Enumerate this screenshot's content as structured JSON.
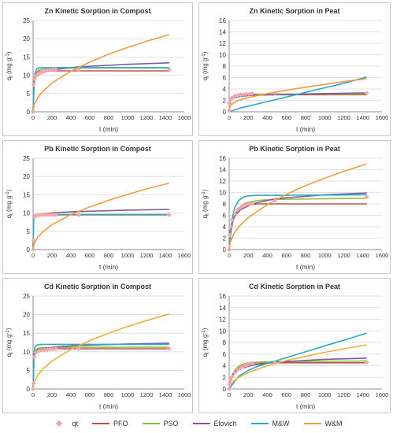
{
  "styles": {
    "qt": "#f4a6ad",
    "PFO": "#c0504d",
    "PSO": "#8fbe3f",
    "Elovich": "#7f5aa0",
    "MW": "#2fa9c3",
    "WM": "#f39c3b",
    "WM_cd": "#e5b33a",
    "grid": "#d9d9d9",
    "axis": "#8c8c8c",
    "text": "#333333"
  },
  "legend": [
    {
      "key": "qt",
      "label": "qt",
      "kind": "marker"
    },
    {
      "key": "PFO",
      "label": "PFO",
      "kind": "line"
    },
    {
      "key": "PSO",
      "label": "PSO",
      "kind": "line"
    },
    {
      "key": "Elovich",
      "label": "Elovich",
      "kind": "line"
    },
    {
      "key": "MW",
      "label": "M&W",
      "kind": "line"
    },
    {
      "key": "WM",
      "label": "W&M",
      "kind": "line"
    }
  ],
  "chart_data": [
    {
      "type": "line",
      "title": "Zn Kinetic Sorption in Compost",
      "xlabel": "t (min)",
      "ylabel": "q",
      "xlim": [
        0,
        1600
      ],
      "ylim": [
        0,
        25
      ],
      "xticks": [
        0,
        200,
        400,
        600,
        800,
        1000,
        1200,
        1400,
        1600
      ],
      "yticks": [
        0,
        5,
        10,
        15,
        20,
        25
      ],
      "qt": {
        "x": [
          0,
          5,
          15,
          30,
          60,
          90,
          120,
          150,
          180,
          210,
          240,
          480,
          1440
        ],
        "y": [
          0,
          7.5,
          9.0,
          9.8,
          10.5,
          10.9,
          11.2,
          11.4,
          11.5,
          11.6,
          11.6,
          11.6,
          11.5
        ]
      },
      "series": [
        {
          "name": "PFO",
          "x": [
            0,
            10,
            20,
            40,
            60,
            100,
            150,
            200,
            300,
            480,
            1440
          ],
          "y": [
            0,
            7.0,
            9.5,
            10.8,
            11.1,
            11.2,
            11.2,
            11.2,
            11.2,
            11.2,
            11.2
          ]
        },
        {
          "name": "PSO",
          "x": [
            0,
            10,
            20,
            40,
            60,
            100,
            150,
            200,
            300,
            480,
            1440
          ],
          "y": [
            0,
            8.0,
            10.0,
            11.0,
            11.4,
            11.7,
            11.8,
            11.9,
            11.9,
            12.0,
            12.0
          ]
        },
        {
          "name": "Elovich",
          "x": [
            1,
            10,
            30,
            60,
            120,
            240,
            480,
            1000,
            1440
          ],
          "y": [
            7.0,
            8.5,
            9.5,
            10.2,
            10.9,
            11.6,
            12.3,
            13.0,
            13.4
          ]
        },
        {
          "name": "M&W",
          "x": [
            0,
            10,
            20,
            40,
            60,
            100,
            150,
            200,
            480,
            1440
          ],
          "y": [
            0,
            8.0,
            10.5,
            11.8,
            12.0,
            12.1,
            12.1,
            12.1,
            12.1,
            12.1
          ]
        },
        {
          "name": "W&M",
          "x": [
            0,
            10,
            50,
            100,
            200,
            400,
            600,
            800,
            1000,
            1200,
            1440
          ],
          "y": [
            0,
            1.8,
            3.9,
            5.5,
            7.9,
            11.1,
            13.6,
            15.8,
            17.6,
            19.3,
            21.1
          ]
        }
      ]
    },
    {
      "type": "line",
      "title": "Zn Kinetic Sorption in Peat",
      "xlabel": "t (min)",
      "ylabel": "q",
      "xlim": [
        0,
        1600
      ],
      "ylim": [
        0,
        16
      ],
      "xticks": [
        0,
        200,
        400,
        600,
        800,
        1000,
        1200,
        1400,
        1600
      ],
      "yticks": [
        0,
        2,
        4,
        6,
        8,
        10,
        12,
        14,
        16
      ],
      "qt": {
        "x": [
          0,
          5,
          15,
          30,
          60,
          90,
          120,
          150,
          180,
          210,
          240,
          480,
          1440
        ],
        "y": [
          0.2,
          1.5,
          2.2,
          2.5,
          2.8,
          2.9,
          3.0,
          3.0,
          3.1,
          3.1,
          3.2,
          3.3,
          3.3
        ]
      },
      "series": [
        {
          "name": "PFO",
          "x": [
            0,
            10,
            20,
            40,
            60,
            100,
            200,
            480,
            1440
          ],
          "y": [
            0,
            1.8,
            2.3,
            2.6,
            2.8,
            2.9,
            3.0,
            3.0,
            3.0
          ]
        },
        {
          "name": "PSO",
          "x": [
            0,
            10,
            20,
            40,
            60,
            100,
            200,
            480,
            1440
          ],
          "y": [
            0,
            2.0,
            2.4,
            2.7,
            2.9,
            3.0,
            3.1,
            3.1,
            3.1
          ]
        },
        {
          "name": "Elovich",
          "x": [
            1,
            10,
            30,
            60,
            120,
            240,
            480,
            1000,
            1440
          ],
          "y": [
            1.2,
            2.0,
            2.3,
            2.5,
            2.7,
            2.9,
            3.0,
            3.2,
            3.3
          ]
        },
        {
          "name": "M&W",
          "x": [
            0,
            100,
            200,
            400,
            600,
            800,
            1000,
            1200,
            1440
          ],
          "y": [
            0,
            0.6,
            1.0,
            1.8,
            2.6,
            3.4,
            4.2,
            5.0,
            6.1
          ]
        },
        {
          "name": "W&M",
          "x": [
            0,
            10,
            50,
            100,
            200,
            400,
            600,
            800,
            1000,
            1200,
            1440
          ],
          "y": [
            0,
            1.0,
            1.6,
            2.0,
            2.5,
            3.2,
            3.8,
            4.3,
            4.8,
            5.3,
            5.8
          ]
        }
      ]
    },
    {
      "type": "line",
      "title": "Pb Kinetic Sorption in Compost",
      "xlabel": "t (min)",
      "ylabel": "q",
      "xlim": [
        0,
        1600
      ],
      "ylim": [
        0,
        25
      ],
      "xticks": [
        0,
        200,
        400,
        600,
        800,
        1000,
        1200,
        1400,
        1600
      ],
      "yticks": [
        0,
        5,
        10,
        15,
        20,
        25
      ],
      "qt": {
        "x": [
          0,
          5,
          15,
          30,
          60,
          90,
          120,
          150,
          180,
          210,
          240,
          480,
          1440
        ],
        "y": [
          0,
          2.5,
          8.8,
          9.3,
          9.4,
          9.5,
          9.5,
          9.5,
          9.5,
          9.5,
          9.5,
          9.5,
          9.5
        ]
      },
      "series": [
        {
          "name": "PFO",
          "x": [
            0,
            5,
            10,
            20,
            40,
            100,
            480,
            1440
          ],
          "y": [
            0,
            8.0,
            9.2,
            9.4,
            9.5,
            9.5,
            9.5,
            9.5
          ]
        },
        {
          "name": "PSO",
          "x": [
            0,
            5,
            10,
            20,
            40,
            100,
            480,
            1440
          ],
          "y": [
            0,
            8.5,
            9.3,
            9.5,
            9.6,
            9.6,
            9.6,
            9.6
          ]
        },
        {
          "name": "Elovich",
          "x": [
            1,
            10,
            30,
            60,
            120,
            240,
            480,
            1000,
            1440
          ],
          "y": [
            8.0,
            8.8,
            9.2,
            9.5,
            9.8,
            10.1,
            10.4,
            10.8,
            11.0
          ]
        },
        {
          "name": "M&W",
          "x": [
            0,
            5,
            10,
            20,
            40,
            100,
            480,
            1440
          ],
          "y": [
            0,
            8.4,
            9.3,
            9.5,
            9.6,
            9.6,
            9.6,
            9.6
          ]
        },
        {
          "name": "W&M",
          "x": [
            0,
            10,
            50,
            100,
            200,
            400,
            600,
            800,
            1000,
            1200,
            1440
          ],
          "y": [
            0,
            1.5,
            3.4,
            4.8,
            6.8,
            9.6,
            11.7,
            13.5,
            15.1,
            16.6,
            18.2
          ]
        }
      ]
    },
    {
      "type": "line",
      "title": "Pb Kinetic Sorption in Peat",
      "xlabel": "t (min)",
      "ylabel": "q",
      "xlim": [
        0,
        1600
      ],
      "ylim": [
        0,
        16
      ],
      "xticks": [
        0,
        200,
        400,
        600,
        800,
        1000,
        1200,
        1400,
        1600
      ],
      "yticks": [
        0,
        2,
        4,
        6,
        8,
        10,
        12,
        14,
        16
      ],
      "qt": {
        "x": [
          0,
          5,
          15,
          30,
          60,
          90,
          120,
          150,
          180,
          210,
          240,
          480,
          1440
        ],
        "y": [
          0,
          2.5,
          4.0,
          5.2,
          6.3,
          7.0,
          7.4,
          7.7,
          7.9,
          8.0,
          8.1,
          8.6,
          9.2
        ]
      },
      "series": [
        {
          "name": "PFO",
          "x": [
            0,
            20,
            40,
            60,
            100,
            150,
            200,
            300,
            480,
            1440
          ],
          "y": [
            0,
            3.2,
            5.0,
            6.0,
            7.1,
            7.7,
            7.9,
            8.0,
            8.0,
            8.0
          ]
        },
        {
          "name": "PSO",
          "x": [
            0,
            20,
            40,
            60,
            100,
            150,
            200,
            300,
            480,
            1440
          ],
          "y": [
            0,
            3.5,
            5.2,
            6.2,
            7.3,
            8.0,
            8.3,
            8.6,
            8.8,
            9.0
          ]
        },
        {
          "name": "Elovich",
          "x": [
            1,
            10,
            30,
            60,
            120,
            240,
            480,
            1000,
            1440
          ],
          "y": [
            1.0,
            3.2,
            4.8,
            5.9,
            7.0,
            8.0,
            8.9,
            9.6,
            9.9
          ]
        },
        {
          "name": "M&W",
          "x": [
            0,
            20,
            40,
            60,
            100,
            150,
            200,
            300,
            480,
            1440
          ],
          "y": [
            0,
            4.0,
            6.2,
            7.4,
            8.6,
            9.2,
            9.4,
            9.5,
            9.5,
            9.6
          ]
        },
        {
          "name": "W&M",
          "x": [
            0,
            10,
            50,
            100,
            200,
            400,
            600,
            800,
            1000,
            1200,
            1440
          ],
          "y": [
            0,
            1.2,
            2.8,
            4.0,
            5.6,
            7.9,
            9.7,
            11.2,
            12.5,
            13.7,
            15.0
          ]
        }
      ]
    },
    {
      "type": "line",
      "title": "Cd Kinetic Sorption in Compost",
      "xlabel": "t (min)",
      "ylabel": "q",
      "xlim": [
        0,
        1600
      ],
      "ylim": [
        0,
        25
      ],
      "xticks": [
        0,
        200,
        400,
        600,
        800,
        1000,
        1200,
        1400,
        1600
      ],
      "yticks": [
        0,
        5,
        10,
        15,
        20,
        25
      ],
      "qt": {
        "x": [
          0,
          5,
          15,
          30,
          60,
          90,
          120,
          150,
          180,
          210,
          240,
          480,
          1440
        ],
        "y": [
          0,
          1.5,
          8.5,
          9.8,
          10.2,
          10.4,
          10.5,
          10.6,
          10.7,
          10.7,
          10.8,
          10.8,
          10.8
        ]
      },
      "series": [
        {
          "name": "PFO",
          "x": [
            0,
            10,
            20,
            40,
            60,
            100,
            480,
            1440
          ],
          "y": [
            0,
            8.5,
            10.0,
            10.6,
            10.7,
            10.8,
            10.8,
            10.8
          ]
        },
        {
          "name": "PSO",
          "x": [
            0,
            10,
            20,
            40,
            60,
            100,
            480,
            1440
          ],
          "y": [
            0,
            9.0,
            10.2,
            10.8,
            11.0,
            11.1,
            11.2,
            11.2
          ]
        },
        {
          "name": "Elovich",
          "x": [
            1,
            10,
            30,
            60,
            120,
            240,
            480,
            1000,
            1440
          ],
          "y": [
            8.2,
            9.3,
            10.0,
            10.5,
            10.9,
            11.3,
            11.7,
            12.1,
            12.3
          ]
        },
        {
          "name": "M&W",
          "x": [
            0,
            10,
            20,
            40,
            60,
            100,
            480,
            1440
          ],
          "y": [
            0,
            9.5,
            11.3,
            11.8,
            11.9,
            12.0,
            12.0,
            12.0
          ]
        },
        {
          "name": "W&M",
          "x": [
            0,
            10,
            50,
            100,
            200,
            400,
            600,
            800,
            1000,
            1200,
            1440
          ],
          "y": [
            0,
            1.7,
            3.7,
            5.3,
            7.5,
            10.6,
            13.0,
            15.0,
            16.8,
            18.4,
            20.2
          ]
        }
      ]
    },
    {
      "type": "line",
      "title": "Cd Kinetic Sorption in Peat",
      "xlabel": "t (min)",
      "ylabel": "q",
      "xlim": [
        0,
        1600
      ],
      "ylim": [
        0,
        16
      ],
      "xticks": [
        0,
        200,
        400,
        600,
        800,
        1000,
        1200,
        1400,
        1600
      ],
      "yticks": [
        0,
        2,
        4,
        6,
        8,
        10,
        12,
        14,
        16
      ],
      "qt": {
        "x": [
          0,
          5,
          15,
          30,
          60,
          90,
          120,
          150,
          180,
          210,
          240,
          480,
          1440
        ],
        "y": [
          0,
          0.8,
          1.5,
          2.1,
          2.8,
          3.3,
          3.6,
          3.9,
          4.1,
          4.3,
          4.4,
          4.5,
          4.6
        ]
      },
      "series": [
        {
          "name": "PFO",
          "x": [
            0,
            20,
            40,
            60,
            100,
            150,
            200,
            300,
            480,
            1440
          ],
          "y": [
            0,
            1.6,
            2.5,
            3.1,
            3.8,
            4.2,
            4.4,
            4.5,
            4.5,
            4.5
          ]
        },
        {
          "name": "PSO",
          "x": [
            0,
            20,
            40,
            60,
            100,
            150,
            200,
            300,
            480,
            1440
          ],
          "y": [
            0,
            1.8,
            2.7,
            3.3,
            3.9,
            4.3,
            4.5,
            4.6,
            4.7,
            4.8
          ]
        },
        {
          "name": "Elovich",
          "x": [
            1,
            10,
            30,
            60,
            120,
            240,
            480,
            1000,
            1440
          ],
          "y": [
            0.5,
            1.4,
            2.3,
            2.9,
            3.5,
            4.1,
            4.6,
            5.1,
            5.3
          ]
        },
        {
          "name": "M&W",
          "x": [
            0,
            100,
            200,
            300,
            480,
            700,
            900,
            1100,
            1300,
            1440
          ],
          "y": [
            0,
            2.2,
            3.2,
            3.9,
            4.8,
            5.9,
            6.9,
            7.9,
            8.9,
            9.6
          ]
        },
        {
          "name": "W&M",
          "x": [
            0,
            10,
            50,
            100,
            200,
            400,
            600,
            800,
            1000,
            1200,
            1440
          ],
          "y": [
            0,
            0.6,
            1.4,
            2.0,
            2.8,
            4.0,
            4.9,
            5.6,
            6.3,
            6.9,
            7.6
          ]
        }
      ]
    }
  ]
}
